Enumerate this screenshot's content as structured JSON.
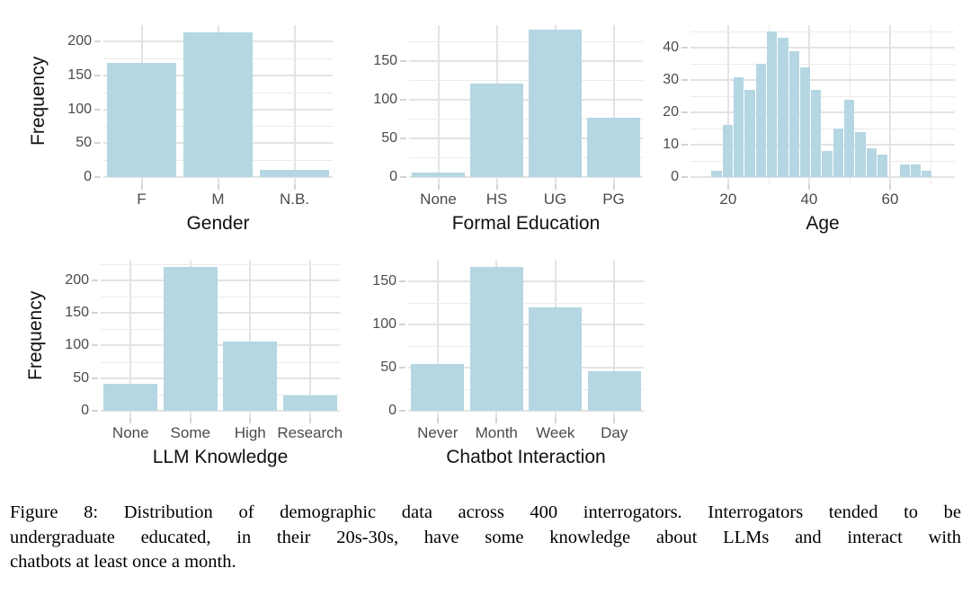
{
  "caption": {
    "lines": [
      "Figure 8: Distribution of demographic data across 400 interrogators. Interrogators tended to be",
      "undergraduate educated, in their 20s-30s, have some knowledge about LLMs and interact with",
      "chatbots at least once a month."
    ]
  },
  "colors": {
    "bar": "#b4d7e3",
    "grid_major": "#e3e3e3",
    "grid_minor": "#ebebeb",
    "tick_mark": "#d4d4d4",
    "tick_label": "#4b4b4b",
    "axis_title": "#111111",
    "background": "#ffffff"
  },
  "chart_data": [
    {
      "id": "gender",
      "type": "bar",
      "xlabel": "Gender",
      "ylabel": "Frequency",
      "categories": [
        "F",
        "M",
        "N.B."
      ],
      "values": [
        168,
        213,
        10
      ],
      "y_ticks": [
        0,
        50,
        100,
        150,
        200
      ],
      "y_minor_gridlines": [
        25,
        75,
        125,
        175
      ],
      "ylim": [
        0,
        224
      ],
      "grid": true,
      "legend": "none"
    },
    {
      "id": "education",
      "type": "bar",
      "xlabel": "Formal Education",
      "ylabel": "",
      "categories": [
        "None",
        "HS",
        "UG",
        "PG"
      ],
      "values": [
        6,
        121,
        190,
        76
      ],
      "y_ticks": [
        0,
        50,
        100,
        150
      ],
      "y_minor_gridlines": [
        25,
        75,
        125,
        175
      ],
      "ylim": [
        0,
        196
      ],
      "grid": true,
      "legend": "none"
    },
    {
      "id": "age",
      "type": "histogram",
      "xlabel": "Age",
      "ylabel": "",
      "bin_start": 15.8,
      "bin_width": 2.73,
      "bin_counts": [
        2,
        16,
        31,
        27,
        35,
        45,
        43,
        39,
        34,
        27,
        8,
        15,
        24,
        14,
        9,
        7,
        0,
        4,
        4,
        2
      ],
      "x_ticks": [
        20,
        40,
        60
      ],
      "x_minor_gridlines": [
        30,
        50,
        70
      ],
      "xlim": [
        10.7,
        76
      ],
      "y_ticks": [
        0,
        10,
        20,
        30,
        40
      ],
      "y_minor_gridlines": [
        5,
        15,
        25,
        35,
        45
      ],
      "ylim": [
        0,
        47
      ],
      "grid": true,
      "legend": "none"
    },
    {
      "id": "llm",
      "type": "bar",
      "xlabel": "LLM Knowledge",
      "ylabel": "Frequency",
      "categories": [
        "None",
        "Some",
        "High",
        "Research"
      ],
      "values": [
        41,
        220,
        106,
        23
      ],
      "y_ticks": [
        0,
        50,
        100,
        150,
        200
      ],
      "y_minor_gridlines": [
        25,
        75,
        125,
        175,
        225
      ],
      "ylim": [
        0,
        230
      ],
      "grid": true,
      "legend": "none"
    },
    {
      "id": "chatbot",
      "type": "bar",
      "xlabel": "Chatbot Interaction",
      "ylabel": "",
      "categories": [
        "Never",
        "Month",
        "Week",
        "Day"
      ],
      "values": [
        54,
        167,
        120,
        46
      ],
      "y_ticks": [
        0,
        50,
        100,
        150
      ],
      "y_minor_gridlines": [
        25,
        75,
        125
      ],
      "ylim": [
        0,
        174
      ],
      "grid": true,
      "legend": "none"
    }
  ]
}
